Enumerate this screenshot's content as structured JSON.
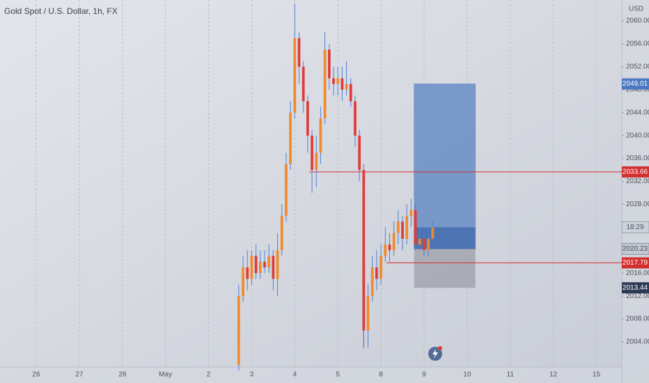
{
  "chart_data": {
    "type": "candlestick",
    "title": "Gold Spot / U.S. Dollar, 1h, FX",
    "y_axis_label": "USD",
    "up_color": "#f08a2c",
    "down_color": "#e03b3b",
    "wick_color": "#4f7fd6",
    "grid": "x",
    "xlim": [
      -0.84,
      13.59
    ],
    "ylim": [
      1999.63,
      2063.65
    ],
    "xticks": [
      {
        "value": 0,
        "label": "26"
      },
      {
        "value": 1,
        "label": "27"
      },
      {
        "value": 2,
        "label": "28"
      },
      {
        "value": 3,
        "label": "May"
      },
      {
        "value": 4,
        "label": "2"
      },
      {
        "value": 5,
        "label": "3"
      },
      {
        "value": 6,
        "label": "4"
      },
      {
        "value": 7,
        "label": "5"
      },
      {
        "value": 8,
        "label": "8"
      },
      {
        "value": 9,
        "label": "9"
      },
      {
        "value": 10,
        "label": "10"
      },
      {
        "value": 11,
        "label": "11"
      },
      {
        "value": 12,
        "label": "12"
      },
      {
        "value": 13,
        "label": "15"
      }
    ],
    "yticks": [
      {
        "value": 2004,
        "label": "2004.00"
      },
      {
        "value": 2008,
        "label": "2008.00"
      },
      {
        "value": 2012,
        "label": "2012.00"
      },
      {
        "value": 2016,
        "label": "2016.00"
      },
      {
        "value": 2020,
        "label": "2020.00"
      },
      {
        "value": 2024,
        "label": "2024.00"
      },
      {
        "value": 2028,
        "label": "2028.00"
      },
      {
        "value": 2032,
        "label": "2032.00"
      },
      {
        "value": 2036,
        "label": "2036.00"
      },
      {
        "value": 2040,
        "label": "2040.00"
      },
      {
        "value": 2044,
        "label": "2044.00"
      },
      {
        "value": 2048,
        "label": "2048.00"
      },
      {
        "value": 2052,
        "label": "2052.00"
      },
      {
        "value": 2056,
        "label": "2056.00"
      },
      {
        "value": 2060,
        "label": "2060.00"
      }
    ],
    "x": [
      4.7,
      4.8,
      4.9,
      5.0,
      5.1,
      5.2,
      5.3,
      5.4,
      5.5,
      5.6,
      5.7,
      5.8,
      5.9,
      6.0,
      6.1,
      6.2,
      6.3,
      6.4,
      6.5,
      6.6,
      6.7,
      6.8,
      6.9,
      7.0,
      7.1,
      7.2,
      7.3,
      7.4,
      7.5,
      7.6,
      7.7,
      7.8,
      7.9,
      8.0,
      8.1,
      8.2,
      8.3,
      8.4,
      8.5,
      8.6,
      8.7,
      8.8,
      8.9,
      9.0,
      9.1,
      9.2
    ],
    "open": [
      2000,
      2012,
      2017,
      2015,
      2019,
      2016,
      2018,
      2017,
      2019,
      2015,
      2020,
      2026,
      2035,
      2044,
      2057,
      2052,
      2046,
      2040,
      2034,
      2037,
      2043,
      2055,
      2050,
      2049,
      2050,
      2048,
      2049,
      2046,
      2040,
      2034,
      2006,
      2012,
      2017,
      2015,
      2019,
      2021,
      2020,
      2023,
      2025,
      2022,
      2026,
      2027,
      2021,
      2022,
      2020,
      2022
    ],
    "high": [
      2014,
      2019,
      2020,
      2020,
      2021,
      2020,
      2020,
      2021,
      2020,
      2023,
      2028,
      2037,
      2046,
      2063,
      2058,
      2053,
      2047,
      2041,
      2040,
      2045,
      2058,
      2056,
      2052,
      2052,
      2052,
      2053,
      2050,
      2047,
      2041,
      2035,
      2014,
      2019,
      2020,
      2021,
      2024,
      2023,
      2025,
      2027,
      2026,
      2028,
      2029,
      2028,
      2024,
      2023,
      2024,
      2025
    ],
    "low": [
      1999,
      2011,
      2013,
      2014,
      2015,
      2015,
      2016,
      2016,
      2013,
      2012,
      2019,
      2025,
      2034,
      2043,
      2049,
      2044,
      2037,
      2030,
      2031,
      2035,
      2042,
      2048,
      2047,
      2047,
      2046,
      2047,
      2045,
      2038,
      2032,
      2003,
      2003,
      2011,
      2013,
      2014,
      2018,
      2018,
      2019,
      2021,
      2020,
      2021,
      2024,
      2020,
      2020,
      2019,
      2019,
      2021
    ],
    "close": [
      2012,
      2017,
      2015,
      2019,
      2016,
      2018,
      2017,
      2019,
      2015,
      2020,
      2026,
      2035,
      2044,
      2057,
      2052,
      2046,
      2040,
      2034,
      2037,
      2043,
      2055,
      2050,
      2049,
      2050,
      2048,
      2049,
      2046,
      2040,
      2034,
      2006,
      2012,
      2017,
      2015,
      2019,
      2021,
      2020,
      2023,
      2025,
      2022,
      2026,
      2027,
      2021,
      2022,
      2020,
      2022,
      2024
    ],
    "hlines": [
      {
        "value": 2033.66,
        "x0": 6.34,
        "color": "#d32f2f"
      },
      {
        "value": 2017.79,
        "x0": 8.13,
        "color": "#d32f2f"
      }
    ],
    "position": {
      "x0": 8.77,
      "x1": 10.19,
      "target": 2049.01,
      "entry": 2020.23,
      "stop": 2013.44
    },
    "countdown": "18:29"
  }
}
